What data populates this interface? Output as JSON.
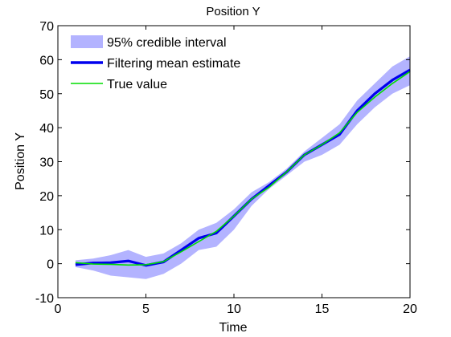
{
  "chart_data": {
    "type": "line",
    "title": "Position Y",
    "xlabel": "Time",
    "ylabel": "Position Y",
    "xlim": [
      0,
      20
    ],
    "ylim": [
      -10,
      70
    ],
    "xticks": [
      0,
      5,
      10,
      15,
      20
    ],
    "yticks": [
      -10,
      0,
      10,
      20,
      30,
      40,
      50,
      60,
      70
    ],
    "grid": false,
    "legend_position": "top-left",
    "x": [
      1,
      2,
      3,
      4,
      5,
      6,
      7,
      8,
      9,
      10,
      11,
      12,
      13,
      14,
      15,
      16,
      17,
      18,
      19,
      20
    ],
    "interval": {
      "name": "95% credible interval",
      "color": "#b3b3ff",
      "lower": [
        -1,
        -2,
        -3.5,
        -4,
        -4.5,
        -3,
        0,
        4,
        5,
        10,
        17,
        22,
        26,
        30,
        32,
        35,
        41,
        46,
        50,
        52.5
      ],
      "upper": [
        1,
        1.5,
        2.5,
        4,
        2,
        3,
        6,
        10,
        12,
        16,
        21,
        24,
        28,
        33,
        37,
        41,
        48,
        53,
        58,
        61
      ]
    },
    "series": [
      {
        "name": "Filtering mean estimate",
        "color": "#0000ee",
        "values": [
          -0.3,
          0.2,
          0.3,
          0.8,
          -0.5,
          0.5,
          4,
          7.5,
          9,
          14,
          19,
          23,
          27,
          32,
          35,
          38,
          45,
          50,
          54,
          57
        ]
      },
      {
        "name": "True value",
        "color": "#00dd00",
        "values": [
          0.3,
          -0.1,
          -0.2,
          -0.4,
          -0.3,
          0.6,
          3.5,
          6.5,
          9.5,
          14,
          19,
          22.5,
          27,
          32,
          35,
          38.5,
          44.5,
          49,
          53,
          56.5
        ]
      }
    ]
  }
}
